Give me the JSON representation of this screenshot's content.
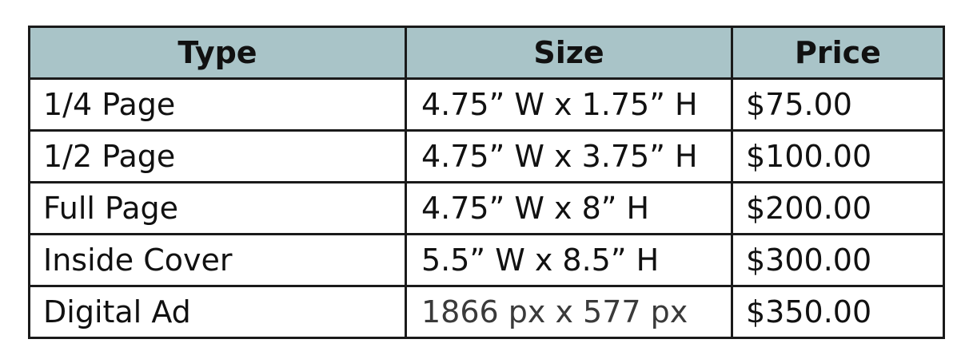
{
  "table": {
    "headers": [
      "Type",
      "Size",
      "Price"
    ],
    "rows": [
      {
        "type": "1/4 Page",
        "size": "4.75” W x 1.75” H",
        "price": "$75.00"
      },
      {
        "type": "1/2 Page",
        "size": "4.75” W x 3.75” H",
        "price": "$100.00"
      },
      {
        "type": "Full Page",
        "size": "4.75” W x 8” H",
        "price": "$200.00"
      },
      {
        "type": "Inside Cover",
        "size": "5.5” W x 8.5” H",
        "price": "$300.00"
      },
      {
        "type": "Digital Ad",
        "size": "1866 px x 577 px",
        "price": "$350.00"
      }
    ],
    "colors": {
      "header_background": "#a9c4c8",
      "border": "#1a1a1a"
    }
  }
}
